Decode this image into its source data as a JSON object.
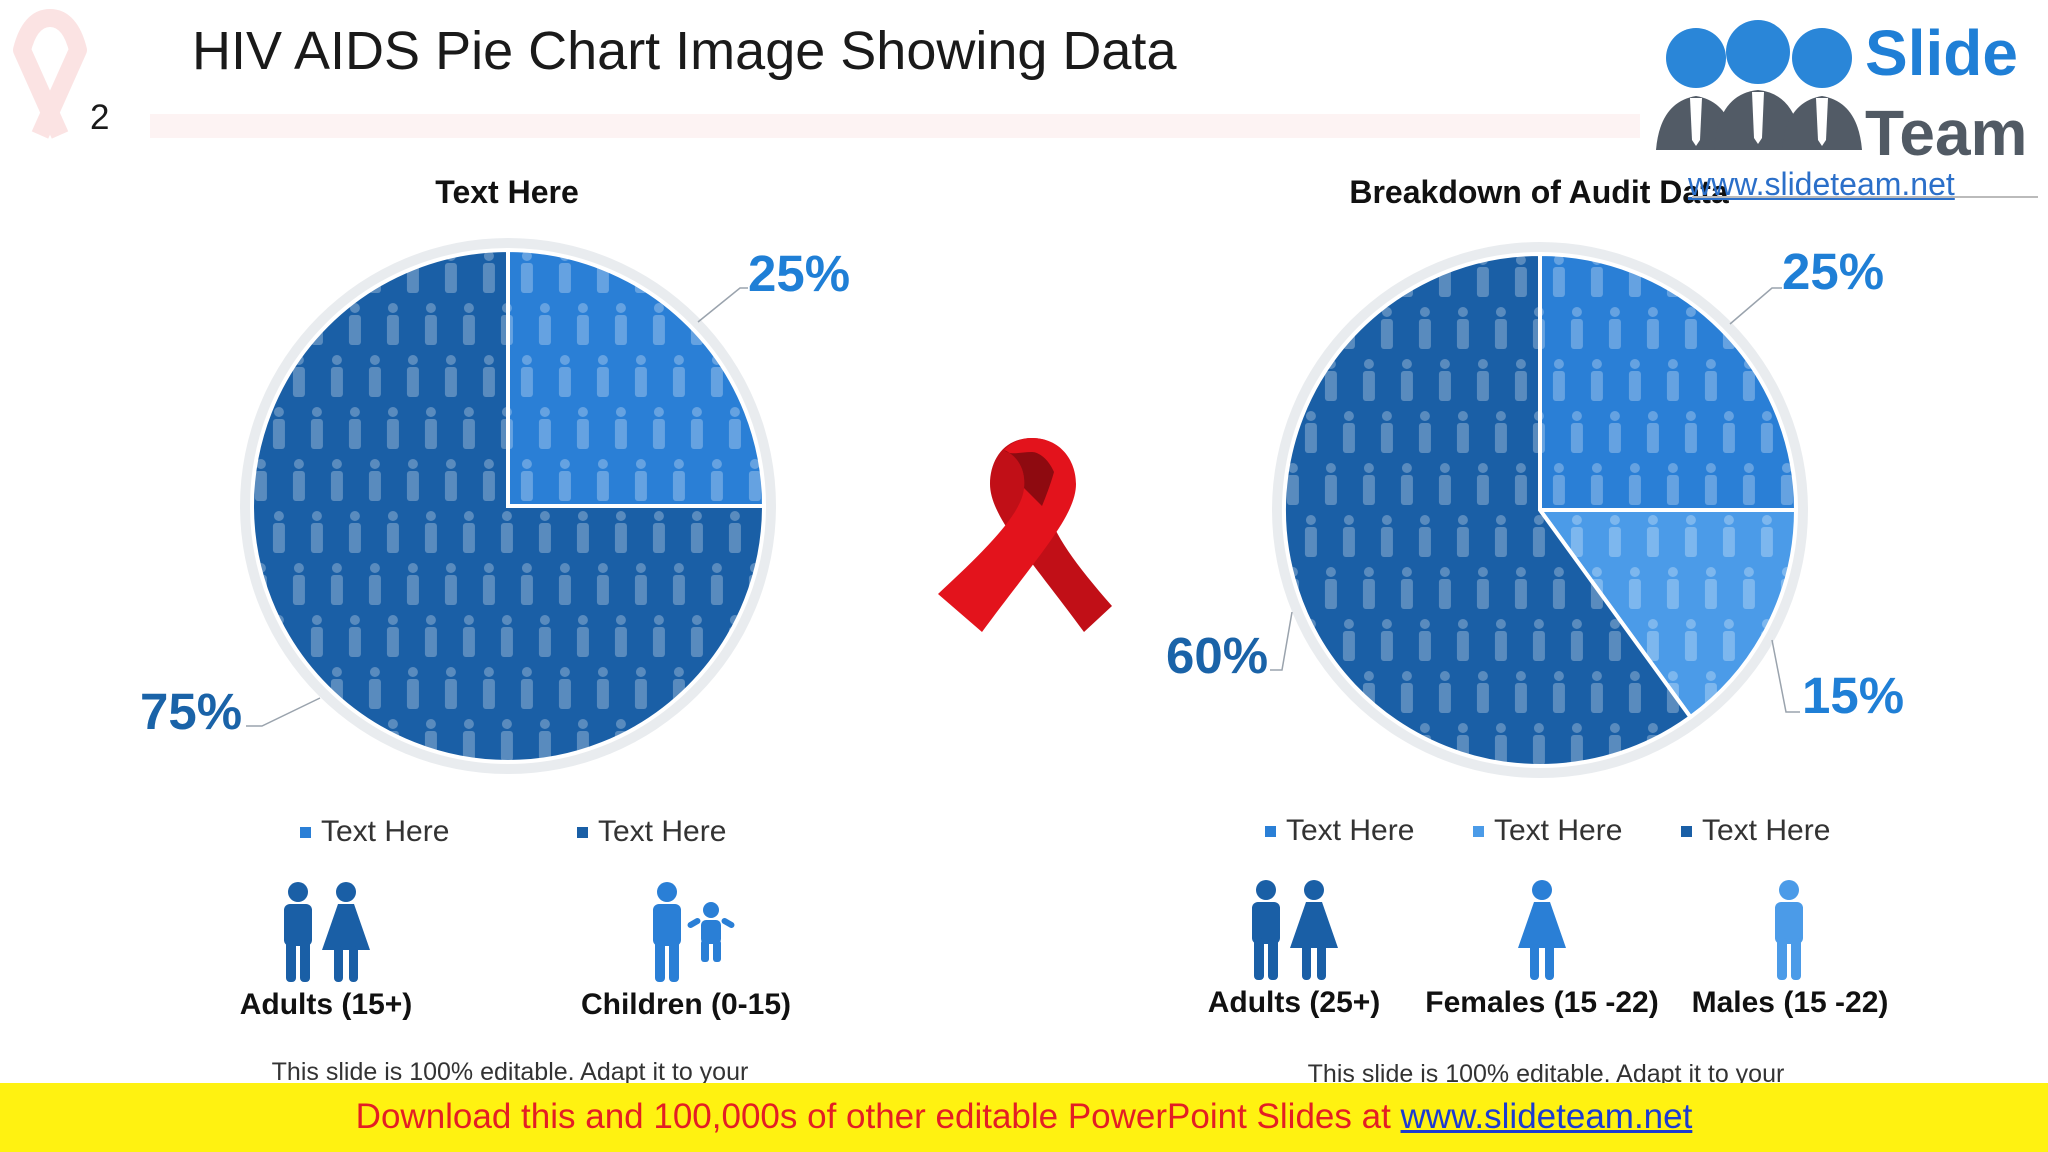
{
  "header": {
    "title": "HIV AIDS Pie Chart Image Showing Data",
    "slide_number": "2"
  },
  "logo": {
    "word1": "Slide",
    "word2": "Team",
    "url": "www.slideteam.net"
  },
  "colors": {
    "dark_blue": "#1a5fa6",
    "mid_blue": "#2a7fd6",
    "light_blue": "#4b9be8",
    "ribbon_red": "#d5121b",
    "footer_yellow": "#fff211",
    "footer_red": "#e31e24"
  },
  "chart_data": [
    {
      "type": "pie",
      "title": "Text Here",
      "slices": [
        {
          "label": "Text Here",
          "value": 25,
          "display": "25%",
          "color": "#2a7fd6",
          "category": "Children (0-15)",
          "icon": "adult-child-icon"
        },
        {
          "label": "Text Here",
          "value": 75,
          "display": "75%",
          "color": "#1a5fa6",
          "category": "Adults (15+)",
          "icon": "adult-couple-icon"
        }
      ],
      "note": "This slide is 100% editable. Adapt it to your"
    },
    {
      "type": "pie",
      "title": "Breakdown of Audit Data",
      "slices": [
        {
          "label": "Text Here",
          "value": 25,
          "display": "25%",
          "color": "#2a7fd6",
          "category": "Females (15 -22)",
          "icon": "female-icon"
        },
        {
          "label": "Text Here",
          "value": 15,
          "display": "15%",
          "color": "#4b9be8",
          "category": "Males (15 -22)",
          "icon": "male-icon"
        },
        {
          "label": "Text Here",
          "value": 60,
          "display": "60%",
          "color": "#1a5fa6",
          "category": "Adults (25+)",
          "icon": "adult-couple-icon"
        }
      ],
      "note": "This slide is 100% editable. Adapt it to your"
    }
  ],
  "footer": {
    "text": "Download this and 100,000s of other editable PowerPoint Slides at",
    "url": "www.slideteam.net"
  }
}
